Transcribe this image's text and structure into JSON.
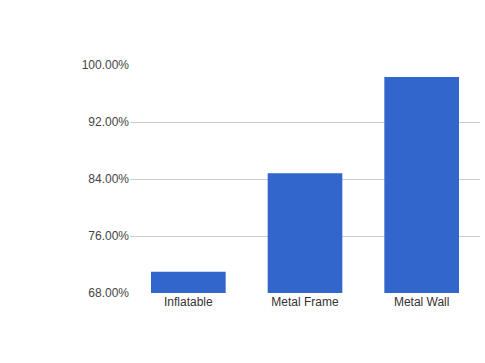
{
  "chart_data": {
    "type": "bar",
    "categories": [
      "Inflatable",
      "Metal Frame",
      "Metal Wall"
    ],
    "values": [
      71,
      84.8,
      98.3
    ],
    "color": "#3366cc",
    "ylim": [
      68,
      100
    ],
    "yticks": [
      {
        "value": 68,
        "label": "68.00%"
      },
      {
        "value": 76,
        "label": "76.00%"
      },
      {
        "value": 84,
        "label": "84.00%"
      },
      {
        "value": 92,
        "label": "92.00%"
      },
      {
        "value": 100,
        "label": "100.00%"
      }
    ],
    "grid": true
  }
}
